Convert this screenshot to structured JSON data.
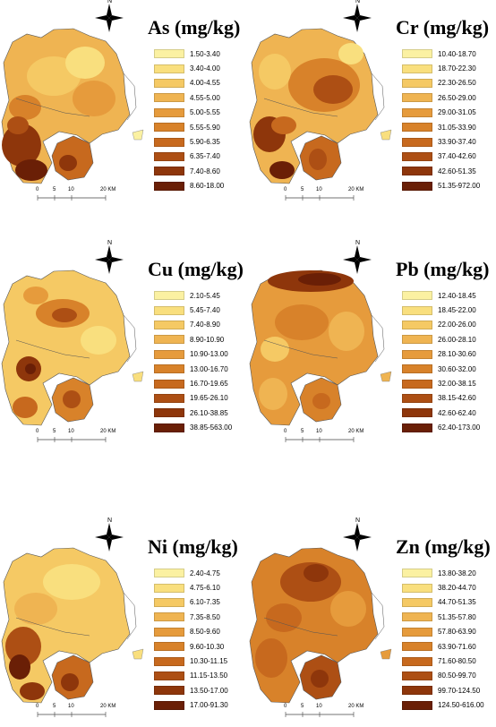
{
  "north_label": "N",
  "scale": {
    "ticks": [
      "0",
      "5",
      "10",
      "20 KM"
    ]
  },
  "class_colors": [
    "#fbf1a2",
    "#f9df7e",
    "#f5c964",
    "#efb452",
    "#e69b3c",
    "#d8822a",
    "#c7691e",
    "#ad4f14",
    "#8e360b",
    "#6a1f06"
  ],
  "panels": [
    {
      "element": "As",
      "title": "As (mg/kg)",
      "classes": [
        "1.50-3.40",
        "3.40-4.00",
        "4.00-4.55",
        "4.55-5.00",
        "5.00-5.55",
        "5.55-5.90",
        "5.90-6.35",
        "6.35-7.40",
        "7.40-8.60",
        "8.60-18.00"
      ]
    },
    {
      "element": "Cr",
      "title": "Cr (mg/kg)",
      "classes": [
        "10.40-18.70",
        "18.70-22.30",
        "22.30-26.50",
        "26.50-29.00",
        "29.00-31.05",
        "31.05-33.90",
        "33.90-37.40",
        "37.40-42.60",
        "42.60-51.35",
        "51.35-972.00"
      ]
    },
    {
      "element": "Cu",
      "title": "Cu (mg/kg)",
      "classes": [
        "2.10-5.45",
        "5.45-7.40",
        "7.40-8.90",
        "8.90-10.90",
        "10.90-13.00",
        "13.00-16.70",
        "16.70-19.65",
        "19.65-26.10",
        "26.10-38.85",
        "38.85-563.00"
      ]
    },
    {
      "element": "Pb",
      "title": "Pb (mg/kg)",
      "classes": [
        "12.40-18.45",
        "18.45-22.00",
        "22.00-26.00",
        "26.00-28.10",
        "28.10-30.60",
        "30.60-32.00",
        "32.00-38.15",
        "38.15-42.60",
        "42.60-62.40",
        "62.40-173.00"
      ]
    },
    {
      "element": "Ni",
      "title": "Ni (mg/kg)",
      "classes": [
        "2.40-4.75",
        "4.75-6.10",
        "6.10-7.35",
        "7.35-8.50",
        "8.50-9.60",
        "9.60-10.30",
        "10.30-11.15",
        "11.15-13.50",
        "13.50-17.00",
        "17.00-91.30"
      ]
    },
    {
      "element": "Zn",
      "title": "Zn (mg/kg)",
      "classes": [
        "13.80-38.20",
        "38.20-44.70",
        "44.70-51.35",
        "51.35-57.80",
        "57.80-63.90",
        "63.90-71.60",
        "71.60-80.50",
        "80.50-99.70",
        "99.70-124.50",
        "124.50-616.00"
      ]
    }
  ]
}
